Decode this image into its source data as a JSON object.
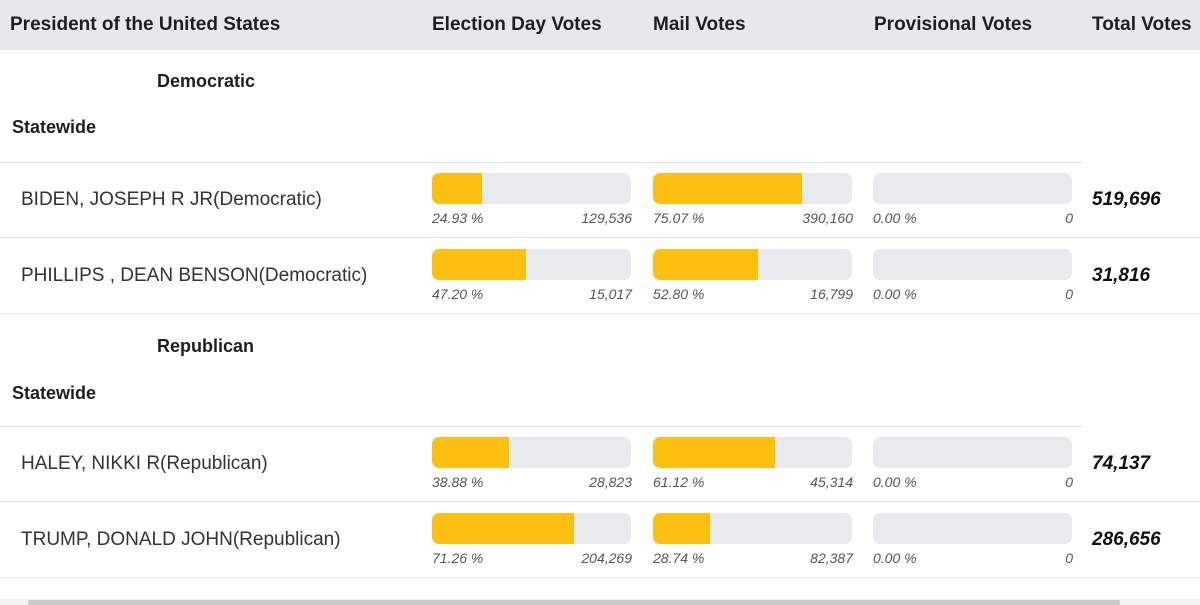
{
  "header": {
    "contest": "President of the United States",
    "election_day": "Election Day Votes",
    "mail": "Mail Votes",
    "provisional": "Provisional Votes",
    "total": "Total Votes"
  },
  "colors": {
    "bar_fill": "#fec010",
    "bar_track": "#e8eaed",
    "header_bg": "#e6e8eb"
  },
  "groups": [
    {
      "party": "Democratic",
      "region": "Statewide",
      "candidates": [
        {
          "name": "BIDEN, JOSEPH R JR(Democratic)",
          "election_day": {
            "pct": "24.93 %",
            "votes": "129,536",
            "fraction": 0.2493
          },
          "mail": {
            "pct": "75.07 %",
            "votes": "390,160",
            "fraction": 0.7507
          },
          "provisional": {
            "pct": "0.00 %",
            "votes": "0",
            "fraction": 0
          },
          "total": "519,696"
        },
        {
          "name": "PHILLIPS , DEAN BENSON(Democratic)",
          "election_day": {
            "pct": "47.20 %",
            "votes": "15,017",
            "fraction": 0.472
          },
          "mail": {
            "pct": "52.80 %",
            "votes": "16,799",
            "fraction": 0.528
          },
          "provisional": {
            "pct": "0.00 %",
            "votes": "0",
            "fraction": 0
          },
          "total": "31,816"
        }
      ]
    },
    {
      "party": "Republican",
      "region": "Statewide",
      "candidates": [
        {
          "name": "HALEY, NIKKI R(Republican)",
          "election_day": {
            "pct": "38.88 %",
            "votes": "28,823",
            "fraction": 0.3888
          },
          "mail": {
            "pct": "61.12 %",
            "votes": "45,314",
            "fraction": 0.6112
          },
          "provisional": {
            "pct": "0.00 %",
            "votes": "0",
            "fraction": 0
          },
          "total": "74,137"
        },
        {
          "name": "TRUMP, DONALD JOHN(Republican)",
          "election_day": {
            "pct": "71.26 %",
            "votes": "204,269",
            "fraction": 0.7126
          },
          "mail": {
            "pct": "28.74 %",
            "votes": "82,387",
            "fraction": 0.2874
          },
          "provisional": {
            "pct": "0.00 %",
            "votes": "0",
            "fraction": 0
          },
          "total": "286,656"
        }
      ]
    }
  ]
}
